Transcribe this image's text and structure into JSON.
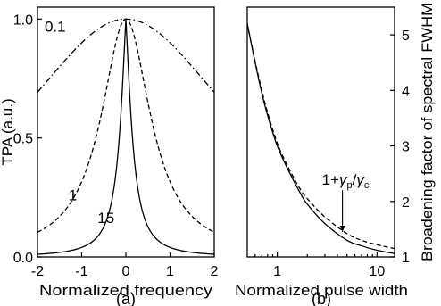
{
  "chart_data": [
    {
      "type": "line",
      "panel_label": "(a)",
      "xlabel": "Normalized frequency",
      "ylabel": "TPA (a.u.)",
      "xlim": [
        -2,
        2
      ],
      "ylim": [
        0,
        1.05
      ],
      "xticks": [
        -2,
        -1,
        0,
        1,
        2
      ],
      "yticks": [
        0.0,
        0.5,
        1.0
      ],
      "ytick_labels": [
        "0.0",
        "0.5",
        "1.0"
      ],
      "grid": false,
      "series": [
        {
          "name": "0.1",
          "style": "dashdot",
          "shape": "lorentzian",
          "width": 3.0,
          "x": [
            -2,
            -1.5,
            -1,
            -0.5,
            0,
            0.5,
            1,
            1.5,
            2
          ],
          "values": [
            0.69,
            0.8,
            0.9,
            0.97,
            1.0,
            0.97,
            0.9,
            0.8,
            0.69
          ]
        },
        {
          "name": "1",
          "style": "dashed",
          "shape": "lorentzian",
          "width": 0.68,
          "x": [
            -2,
            -1.5,
            -1,
            -0.5,
            0,
            0.5,
            1,
            1.5,
            2
          ],
          "values": [
            0.1,
            0.17,
            0.32,
            0.65,
            1.0,
            0.65,
            0.32,
            0.17,
            0.1
          ]
        },
        {
          "name": "15",
          "style": "solid",
          "shape": "cusp",
          "width": 0.28,
          "x": [
            -2,
            -1.5,
            -1,
            -0.5,
            0,
            0.5,
            1,
            1.5,
            2
          ],
          "values": [
            0.01,
            0.02,
            0.05,
            0.15,
            1.0,
            0.15,
            0.05,
            0.02,
            0.01
          ]
        }
      ],
      "annotations": [
        {
          "text": "0.1",
          "x": -1.6,
          "y": 0.97
        },
        {
          "text": "1",
          "x": -1.2,
          "y": 0.26
        },
        {
          "text": "15",
          "x": -0.45,
          "y": 0.165
        }
      ]
    },
    {
      "type": "line",
      "panel_label": "(b)",
      "xlabel": "Normalized pulse width",
      "ylabel": "Broadening factor of spectral FWHM",
      "xscale": "log",
      "xlim": [
        0.5,
        15
      ],
      "ylim": [
        1,
        5.5
      ],
      "xticks": [
        1,
        10
      ],
      "xtick_labels": [
        "1",
        "10"
      ],
      "yticks": [
        1,
        2,
        3,
        4,
        5
      ],
      "grid": false,
      "series": [
        {
          "style": "solid",
          "x": [
            0.5,
            0.6,
            0.7,
            0.8,
            1,
            1.3,
            1.7,
            2,
            3,
            5,
            7,
            10,
            15
          ],
          "values": [
            5.2,
            4.5,
            3.95,
            3.55,
            3.0,
            2.55,
            2.15,
            1.95,
            1.6,
            1.3,
            1.2,
            1.12,
            1.06
          ]
        },
        {
          "style": "dashed",
          "x": [
            0.5,
            0.6,
            0.7,
            0.8,
            1,
            1.3,
            1.7,
            2,
            3,
            5,
            7,
            10,
            15
          ],
          "values": [
            5.2,
            4.52,
            4.0,
            3.6,
            3.05,
            2.6,
            2.22,
            2.05,
            1.72,
            1.42,
            1.3,
            1.22,
            1.15
          ]
        }
      ],
      "annotations": [
        {
          "text": "1+",
          "x": 2.8,
          "y": 2.3,
          "arrow_to_x": 4.5,
          "arrow_to_y": 1.45,
          "gamma_p": "γ",
          "sub_p": "p",
          "slash": "/",
          "gamma_c": "γ",
          "sub_c": "c"
        }
      ]
    }
  ]
}
